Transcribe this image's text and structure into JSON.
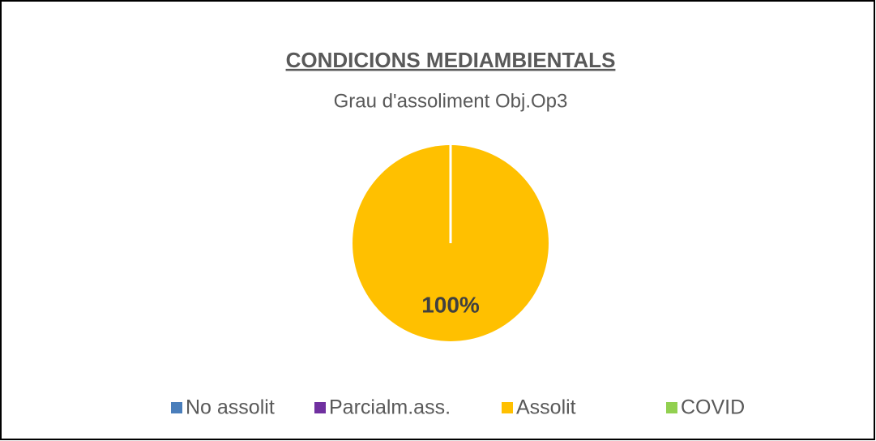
{
  "chart_data": {
    "type": "pie",
    "title": "CONDICIONS MEDIAMBIENTALS",
    "subtitle": "Grau d'assoliment Obj.Op3",
    "categories": [
      "No assolit",
      "Parcialm.ass.",
      "Assolit",
      "COVID"
    ],
    "values": [
      0,
      0,
      100,
      0
    ],
    "value_labels": [
      null,
      null,
      "100%",
      null
    ],
    "colors": [
      "#4a7ebb",
      "#7030a0",
      "#ffc000",
      "#92d050"
    ],
    "legend": "bottom"
  }
}
